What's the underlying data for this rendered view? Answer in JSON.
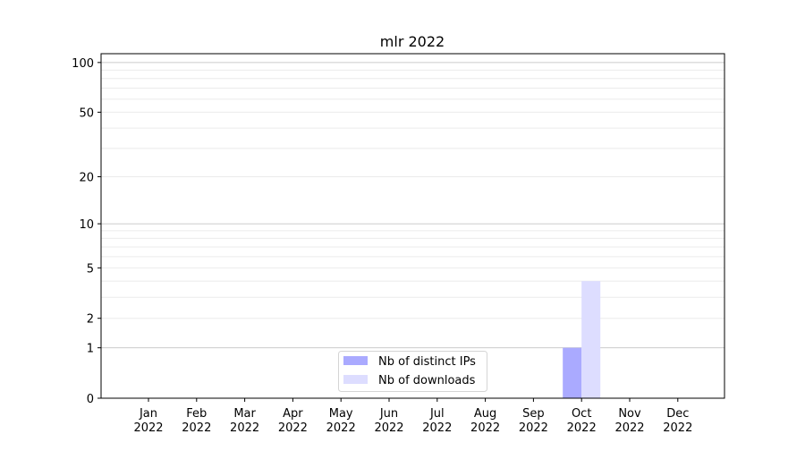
{
  "chart_data": {
    "type": "bar",
    "title": "mlr 2022",
    "xlabel": "",
    "ylabel": "",
    "yscale": "log(1+y)",
    "ylim": [
      0,
      113
    ],
    "yticks": [
      0,
      1,
      2,
      5,
      10,
      20,
      50,
      100
    ],
    "grid": true,
    "legend_position": "bottom-center",
    "categories": [
      "Jan\n2022",
      "Feb\n2022",
      "Mar\n2022",
      "Apr\n2022",
      "May\n2022",
      "Jun\n2022",
      "Jul\n2022",
      "Aug\n2022",
      "Sep\n2022",
      "Oct\n2022",
      "Nov\n2022",
      "Dec\n2022"
    ],
    "series": [
      {
        "name": "Nb of distinct IPs",
        "color": "#aaaaff",
        "values": [
          0,
          0,
          0,
          0,
          0,
          0,
          0,
          0,
          0,
          1,
          0,
          0
        ]
      },
      {
        "name": "Nb of downloads",
        "color": "#ddddff",
        "values": [
          0,
          0,
          0,
          0,
          0,
          0,
          0,
          0,
          0,
          4,
          0,
          0
        ]
      }
    ]
  }
}
